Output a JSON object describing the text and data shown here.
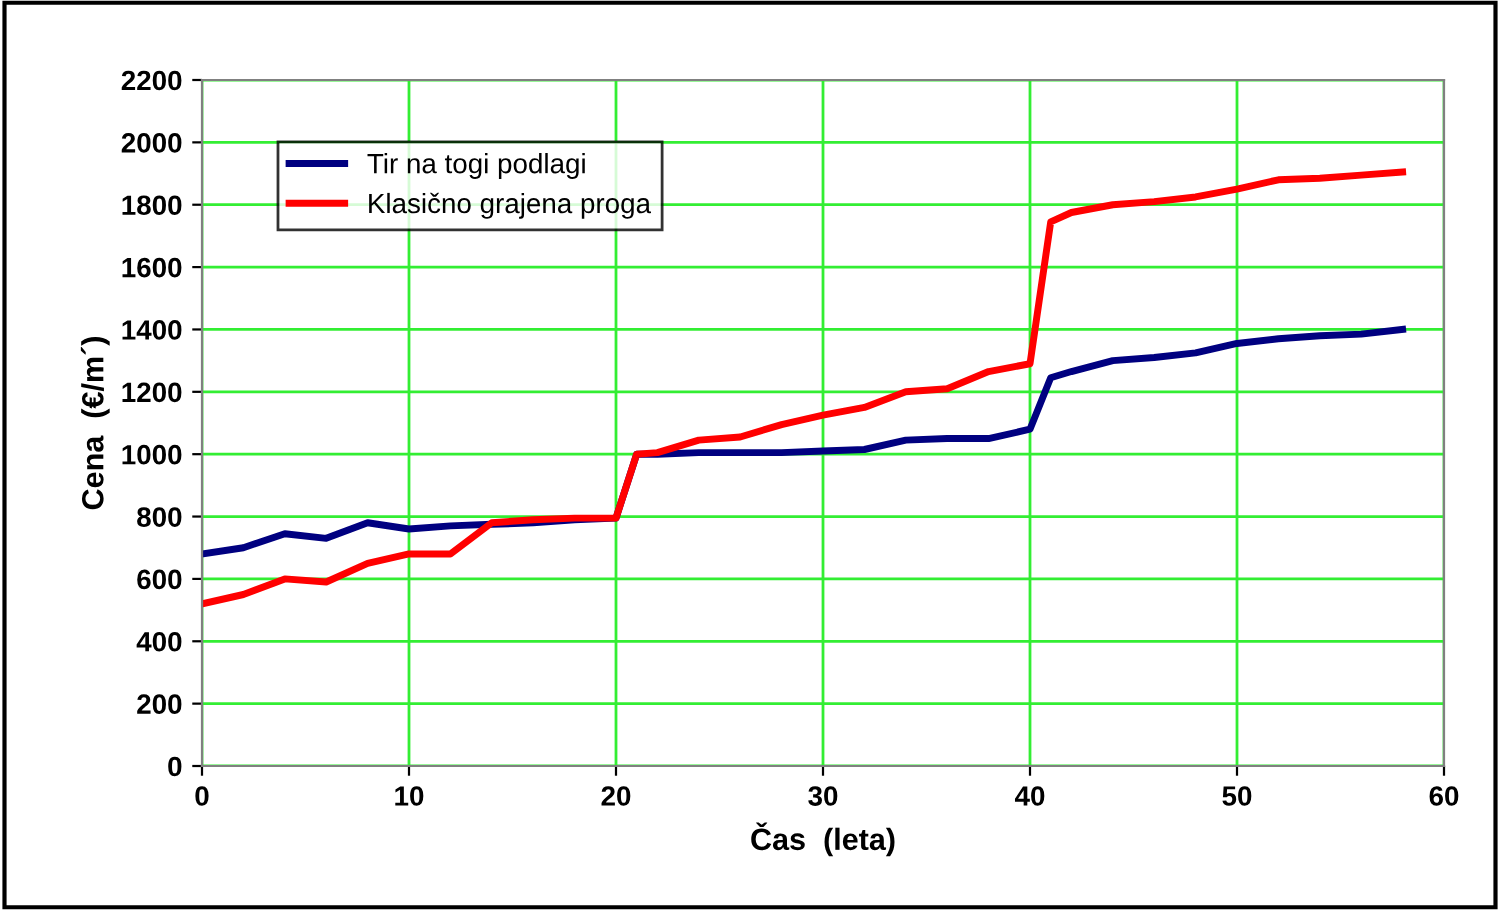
{
  "chart_data": {
    "type": "line",
    "xlabel": "Čas  (leta)",
    "ylabel": "Cena  (€/m´)",
    "x": [
      0,
      2,
      4,
      6,
      8,
      10,
      12,
      14,
      16,
      18,
      20,
      21,
      22,
      24,
      26,
      28,
      30,
      32,
      34,
      36,
      38,
      40,
      41,
      42,
      44,
      46,
      48,
      50,
      52,
      54,
      56,
      58
    ],
    "series": [
      {
        "name": "Tir na togi podlagi",
        "color": "#000080",
        "values": [
          680,
          700,
          745,
          730,
          780,
          760,
          770,
          775,
          780,
          790,
          795,
          1000,
          1000,
          1005,
          1005,
          1005,
          1010,
          1015,
          1045,
          1050,
          1050,
          1080,
          1245,
          1265,
          1300,
          1310,
          1325,
          1355,
          1370,
          1380,
          1385,
          1400
        ]
      },
      {
        "name": "Klasično grajena proga",
        "color": "#ff0000",
        "values": [
          520,
          550,
          600,
          590,
          650,
          680,
          680,
          780,
          790,
          795,
          795,
          1000,
          1005,
          1045,
          1055,
          1095,
          1125,
          1150,
          1200,
          1210,
          1265,
          1290,
          1745,
          1775,
          1800,
          1810,
          1825,
          1850,
          1880,
          1885,
          1895,
          1905
        ]
      }
    ],
    "xlim": [
      0,
      60
    ],
    "xticks": [
      0,
      10,
      20,
      30,
      40,
      50,
      60
    ],
    "ylim": [
      0,
      2200
    ],
    "yticks": [
      0,
      200,
      400,
      600,
      800,
      1000,
      1200,
      1400,
      1600,
      1800,
      2000,
      2200
    ],
    "grid": true,
    "legend": "top left",
    "marker": "none",
    "line_style": "solid"
  }
}
